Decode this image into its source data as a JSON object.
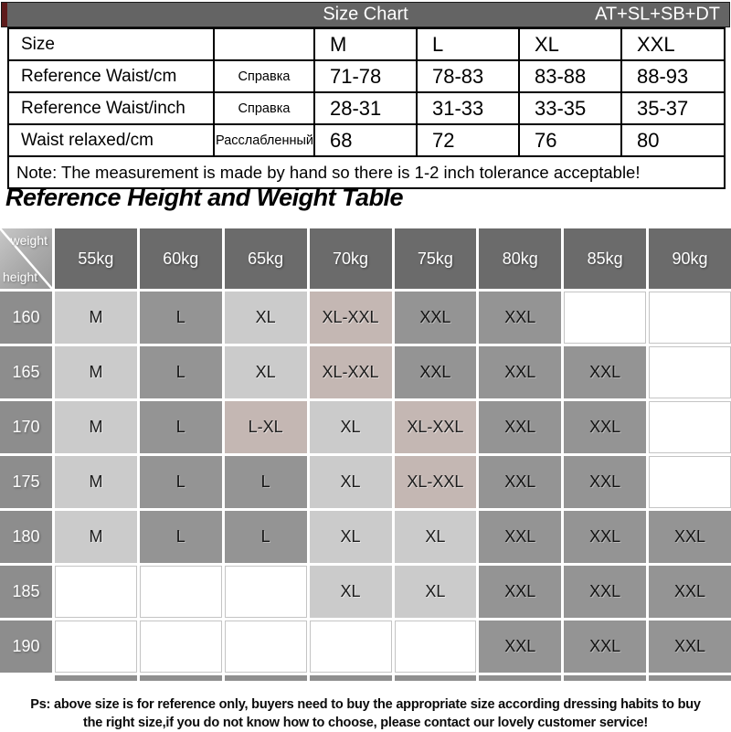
{
  "header_bar": {
    "title": "Size Chart",
    "code": "AT+SL+SB+DT",
    "bg_color": "#646464",
    "accent_color": "#5e1b1b"
  },
  "size_table": {
    "rows": [
      {
        "label": "Size",
        "note": "",
        "values": [
          "M",
          "L",
          "XL",
          "XXL"
        ]
      },
      {
        "label": "Reference Waist/cm",
        "note": "Справка",
        "values": [
          "71-78",
          "78-83",
          "83-88",
          "88-93"
        ]
      },
      {
        "label": "Reference Waist/inch",
        "note": "Справка",
        "values": [
          "28-31",
          "31-33",
          "33-35",
          "35-37"
        ]
      },
      {
        "label": "Waist relaxed/cm",
        "note": "Расслабленный",
        "values": [
          "68",
          "72",
          "76",
          "80"
        ]
      }
    ],
    "note": "Note: The measurement is made by hand so there is 1-2 inch tolerance acceptable!"
  },
  "section_title": "Reference Height and Weight Table",
  "hw_table": {
    "corner": {
      "top": "weight",
      "bottom": "height"
    },
    "weights": [
      "55kg",
      "60kg",
      "65kg",
      "70kg",
      "75kg",
      "80kg",
      "85kg",
      "90kg"
    ],
    "rows": [
      {
        "height": "160",
        "cells": [
          {
            "t": "M",
            "s": "light"
          },
          {
            "t": "L",
            "s": "mid"
          },
          {
            "t": "XL",
            "s": "light"
          },
          {
            "t": "XL-XXL",
            "s": "pink"
          },
          {
            "t": "XXL",
            "s": "mid"
          },
          {
            "t": "XXL",
            "s": "mid"
          },
          {
            "t": "",
            "s": "empty"
          },
          {
            "t": "",
            "s": "empty"
          }
        ]
      },
      {
        "height": "165",
        "cells": [
          {
            "t": "M",
            "s": "light"
          },
          {
            "t": "L",
            "s": "mid"
          },
          {
            "t": "XL",
            "s": "light"
          },
          {
            "t": "XL-XXL",
            "s": "pink"
          },
          {
            "t": "XXL",
            "s": "mid"
          },
          {
            "t": "XXL",
            "s": "mid"
          },
          {
            "t": "XXL",
            "s": "mid"
          },
          {
            "t": "",
            "s": "empty"
          }
        ]
      },
      {
        "height": "170",
        "cells": [
          {
            "t": "M",
            "s": "light"
          },
          {
            "t": "L",
            "s": "mid"
          },
          {
            "t": "L-XL",
            "s": "pink"
          },
          {
            "t": "XL",
            "s": "light"
          },
          {
            "t": "XL-XXL",
            "s": "pink"
          },
          {
            "t": "XXL",
            "s": "mid"
          },
          {
            "t": "XXL",
            "s": "mid"
          },
          {
            "t": "",
            "s": "empty"
          }
        ]
      },
      {
        "height": "175",
        "cells": [
          {
            "t": "M",
            "s": "light"
          },
          {
            "t": "L",
            "s": "mid"
          },
          {
            "t": "L",
            "s": "mid"
          },
          {
            "t": "XL",
            "s": "light"
          },
          {
            "t": "XL-XXL",
            "s": "pink"
          },
          {
            "t": "XXL",
            "s": "mid"
          },
          {
            "t": "XXL",
            "s": "mid"
          },
          {
            "t": "",
            "s": "empty"
          }
        ]
      },
      {
        "height": "180",
        "cells": [
          {
            "t": "M",
            "s": "light"
          },
          {
            "t": "L",
            "s": "mid"
          },
          {
            "t": "L",
            "s": "mid"
          },
          {
            "t": "XL",
            "s": "light"
          },
          {
            "t": "XL",
            "s": "light"
          },
          {
            "t": "XXL",
            "s": "mid"
          },
          {
            "t": "XXL",
            "s": "mid"
          },
          {
            "t": "XXL",
            "s": "mid"
          }
        ]
      },
      {
        "height": "185",
        "cells": [
          {
            "t": "",
            "s": "empty"
          },
          {
            "t": "",
            "s": "empty"
          },
          {
            "t": "",
            "s": "empty"
          },
          {
            "t": "XL",
            "s": "light"
          },
          {
            "t": "XL",
            "s": "light"
          },
          {
            "t": "XXL",
            "s": "mid"
          },
          {
            "t": "XXL",
            "s": "mid"
          },
          {
            "t": "XXL",
            "s": "mid"
          }
        ]
      },
      {
        "height": "190",
        "cells": [
          {
            "t": "",
            "s": "empty"
          },
          {
            "t": "",
            "s": "empty"
          },
          {
            "t": "",
            "s": "empty"
          },
          {
            "t": "",
            "s": "empty"
          },
          {
            "t": "",
            "s": "empty"
          },
          {
            "t": "XXL",
            "s": "mid"
          },
          {
            "t": "XXL",
            "s": "mid"
          },
          {
            "t": "XXL",
            "s": "mid"
          }
        ]
      }
    ],
    "cell_colors": {
      "light": "#cbcbcb",
      "mid": "#949494",
      "pink": "#c4b7b3",
      "weight_header": "#6b6b6b",
      "height_header": "#8d8d8d"
    }
  },
  "footer": {
    "line1": "Ps: above size is for reference only, buyers need to buy the appropriate size according dressing habits to buy",
    "line2": "the right size,if you do not know how to choose, please contact our lovely customer service!"
  }
}
